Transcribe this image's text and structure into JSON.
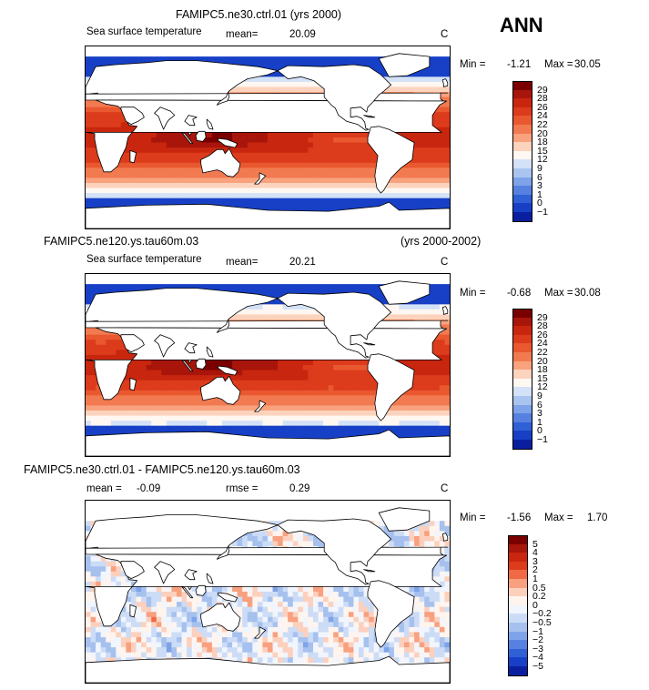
{
  "season": "ANN",
  "panels": [
    {
      "title": "FAMIPC5.ne30.ctrl.01 (yrs 2000)",
      "title_right": "",
      "variable": "Sea surface temperature",
      "mean_label": "mean=",
      "mean": "20.09",
      "rmse_label": "",
      "rmse": "",
      "units": "C",
      "min_label": "Min =",
      "min": "-1.21",
      "max_label": "Max =",
      "max": "30.05",
      "kind": "sst",
      "colorbar": {
        "labels": [
          "29",
          "28",
          "26",
          "24",
          "22",
          "20",
          "18",
          "15",
          "12",
          "9",
          "6",
          "3",
          "1",
          "0",
          "-1"
        ],
        "colors": [
          "#7a0000",
          "#a8150a",
          "#c8260e",
          "#dc3b1c",
          "#e9582f",
          "#f27a50",
          "#f9a27e",
          "#fcd3bd",
          "#fff7f1",
          "#d3e2f7",
          "#a9c5ef",
          "#7ea3e8",
          "#5681e0",
          "#3060d6",
          "#1740c6",
          "#0a1f9f"
        ]
      }
    },
    {
      "title": "FAMIPC5.ne120.ys.tau60m.03",
      "title_right": "(yrs 2000-2002)",
      "variable": "Sea surface temperature",
      "mean_label": "mean=",
      "mean": "20.21",
      "rmse_label": "",
      "rmse": "",
      "units": "C",
      "min_label": "Min =",
      "min": "-0.68",
      "max_label": "Max =",
      "max": "30.08",
      "kind": "sst",
      "colorbar": {
        "labels": [
          "29",
          "28",
          "26",
          "24",
          "22",
          "20",
          "18",
          "15",
          "12",
          "9",
          "6",
          "3",
          "1",
          "0",
          "-1"
        ],
        "colors": [
          "#7a0000",
          "#a8150a",
          "#c8260e",
          "#dc3b1c",
          "#e9582f",
          "#f27a50",
          "#f9a27e",
          "#fcd3bd",
          "#fff7f1",
          "#d3e2f7",
          "#a9c5ef",
          "#7ea3e8",
          "#5681e0",
          "#3060d6",
          "#1740c6",
          "#0a1f9f"
        ]
      }
    },
    {
      "title": "FAMIPC5.ne30.ctrl.01 - FAMIPC5.ne120.ys.tau60m.03",
      "title_right": "",
      "variable": "",
      "mean_label": "mean =",
      "mean": "-0.09",
      "rmse_label": "rmse =",
      "rmse": "0.29",
      "units": "C",
      "min_label": "Min =",
      "min": "-1.56",
      "max_label": "Max =",
      "max": "1.70",
      "kind": "diff",
      "colorbar": {
        "labels": [
          "5",
          "4",
          "3",
          "2",
          "1",
          "0.5",
          "0.2",
          "0",
          "-0.2",
          "-0.5",
          "-1",
          "-2",
          "-3",
          "-4",
          "-5"
        ],
        "colors": [
          "#7a0000",
          "#a8150a",
          "#c8260e",
          "#dc3b1c",
          "#ef6a44",
          "#f8a07f",
          "#fcd0bc",
          "#fff4ee",
          "#f1f5fd",
          "#ccdcf6",
          "#a6c1ee",
          "#7ea3e8",
          "#5681e0",
          "#3060d6",
          "#1740c6",
          "#0a1f9f"
        ]
      }
    }
  ]
}
